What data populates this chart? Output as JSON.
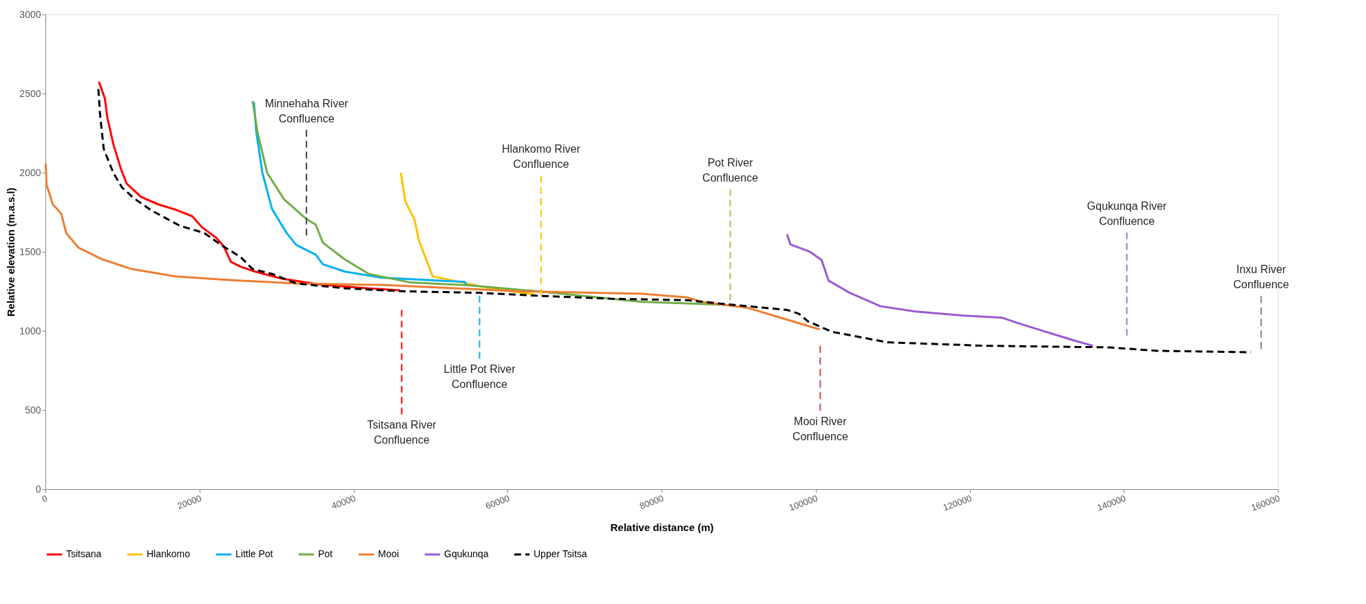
{
  "chart_data": {
    "type": "line",
    "xlabel": "Relative distance (m)",
    "ylabel": "Relative elevation (m.a.s.l)",
    "xlim": [
      0,
      160000
    ],
    "xticks": [
      0,
      20000,
      40000,
      60000,
      80000,
      100000,
      120000,
      140000,
      160000
    ],
    "ylim": [
      0,
      3000
    ],
    "yticks": [
      0,
      500,
      1000,
      1500,
      2000,
      2500,
      3000
    ],
    "grid": false,
    "legend": "bottom",
    "series": [
      {
        "name": "Tsitsana",
        "color": "#ff0000",
        "line_style": "solid",
        "x": [
          6940,
          7720,
          8040,
          8820,
          9770,
          10560,
          12440,
          14640,
          16850,
          19050,
          20300,
          22190,
          23130,
          24080,
          25330,
          27220,
          30680,
          35720,
          42000,
          46000
        ],
        "values": [
          2575,
          2468,
          2347,
          2180,
          2028,
          1930,
          1846,
          1800,
          1767,
          1725,
          1656,
          1588,
          1535,
          1436,
          1406,
          1375,
          1330,
          1292,
          1269,
          1256
        ]
      },
      {
        "name": "Hlankomo",
        "color": "#ffc000",
        "line_style": "solid",
        "x": [
          46140,
          46720,
          47900,
          48490,
          50260,
          57720,
          63500
        ],
        "values": [
          1999,
          1819,
          1705,
          1572,
          1345,
          1269,
          1230
        ]
      },
      {
        "name": "Little Pot",
        "color": "#00b0f0",
        "line_style": "solid",
        "x": [
          27070,
          27380,
          28170,
          29420,
          31310,
          32570,
          35080,
          36020,
          38860,
          43580,
          47290,
          54400,
          54700
        ],
        "values": [
          2445,
          2256,
          1998,
          1770,
          1619,
          1543,
          1482,
          1421,
          1375,
          1337,
          1327,
          1310,
          1290
        ]
      },
      {
        "name": "Pot",
        "color": "#70ad47",
        "line_style": "solid",
        "x": [
          26900,
          27530,
          28790,
          30990,
          33820,
          35080,
          36020,
          38860,
          42000,
          47290,
          54970,
          64020,
          77390,
          88390
        ],
        "values": [
          2453,
          2256,
          1998,
          1831,
          1709,
          1672,
          1557,
          1452,
          1360,
          1307,
          1288,
          1250,
          1184,
          1165
        ]
      },
      {
        "name": "Mooi",
        "color": "#ed7d31",
        "line_style": "solid",
        "x": [
          20,
          160,
          960,
          2060,
          2690,
          4260,
          7400,
          11180,
          16850,
          23770,
          32570,
          44000,
          61660,
          77390,
          83280,
          85240,
          91140,
          97050,
          100500
        ],
        "values": [
          2058,
          1922,
          1800,
          1740,
          1619,
          1527,
          1452,
          1391,
          1345,
          1322,
          1300,
          1290,
          1250,
          1235,
          1212,
          1184,
          1146,
          1060,
          1010
        ]
      },
      {
        "name": "Gqukunqa",
        "color": "#9b59d0",
        "line_style": "solid",
        "x": [
          96270,
          96720,
          99190,
          100760,
          101670,
          104360,
          108400,
          112900,
          119180,
          124130,
          126380,
          129970,
          133560,
          136000
        ],
        "values": [
          1611,
          1546,
          1502,
          1448,
          1318,
          1242,
          1156,
          1123,
          1097,
          1084,
          1047,
          993,
          939,
          906
        ]
      },
      {
        "name": "Upper Tsitsa",
        "color": "#000000",
        "line_style": "dashed",
        "x": [
          6870,
          7100,
          7570,
          8820,
          9930,
          11500,
          13700,
          17470,
          20610,
          22810,
          25330,
          26900,
          29420,
          32570,
          38860,
          46720,
          56150,
          64020,
          73450,
          83280,
          89170,
          96250,
          97820,
          99000,
          102150,
          109300,
          121880,
          138050,
          144340,
          156500
        ],
        "values": [
          2529,
          2362,
          2150,
          1998,
          1907,
          1838,
          1763,
          1664,
          1619,
          1543,
          1467,
          1391,
          1360,
          1300,
          1269,
          1250,
          1241,
          1222,
          1203,
          1194,
          1165,
          1133,
          1108,
          1060,
          994,
          928,
          906,
          896,
          874,
          865
        ]
      },
      {
        "color": "#404040",
        "line_style": "dashed",
        "x": [
          33890,
          33890
        ],
        "values": [
          1603,
          2271
        ]
      },
      {
        "color": "#ff0000",
        "line_style": "dashed",
        "x": [
          46250,
          46250
        ],
        "values": [
          1133,
          472
        ]
      },
      {
        "color": "#00b0f0",
        "line_style": "dashed",
        "x": [
          56360,
          56360
        ],
        "values": [
          1222,
          824
        ]
      },
      {
        "color": "#ffc000",
        "line_style": "dashed",
        "x": [
          64340,
          64340
        ],
        "values": [
          1222,
          1981
        ]
      },
      {
        "color": "#a9c25a",
        "line_style": "dashed",
        "x": [
          88900,
          88900
        ],
        "values": [
          1194,
          1895
        ]
      },
      {
        "color": "#c0504d",
        "line_style": "dashed",
        "x": [
          100590,
          100590
        ],
        "values": [
          906,
          495
        ]
      },
      {
        "color": "#8e7cc3",
        "line_style": "dashed",
        "x": [
          140390,
          140390
        ],
        "values": [
          971,
          1622
        ]
      },
      {
        "color": "#808080",
        "line_style": "dashed",
        "x": [
          157830,
          157830
        ],
        "values": [
          885,
          1221
        ]
      }
    ],
    "annotations": [
      "Minnehaha River\nConfluence",
      "Tsitsana River\nConfluence",
      "Little Pot River\nConfluence",
      "Hlankomo River\nConfluence",
      "Pot River\nConfluence",
      "Mooi River\nConfluence",
      "Gqukunqa River\nConfluence",
      "Inxu River\nConfluence"
    ]
  }
}
